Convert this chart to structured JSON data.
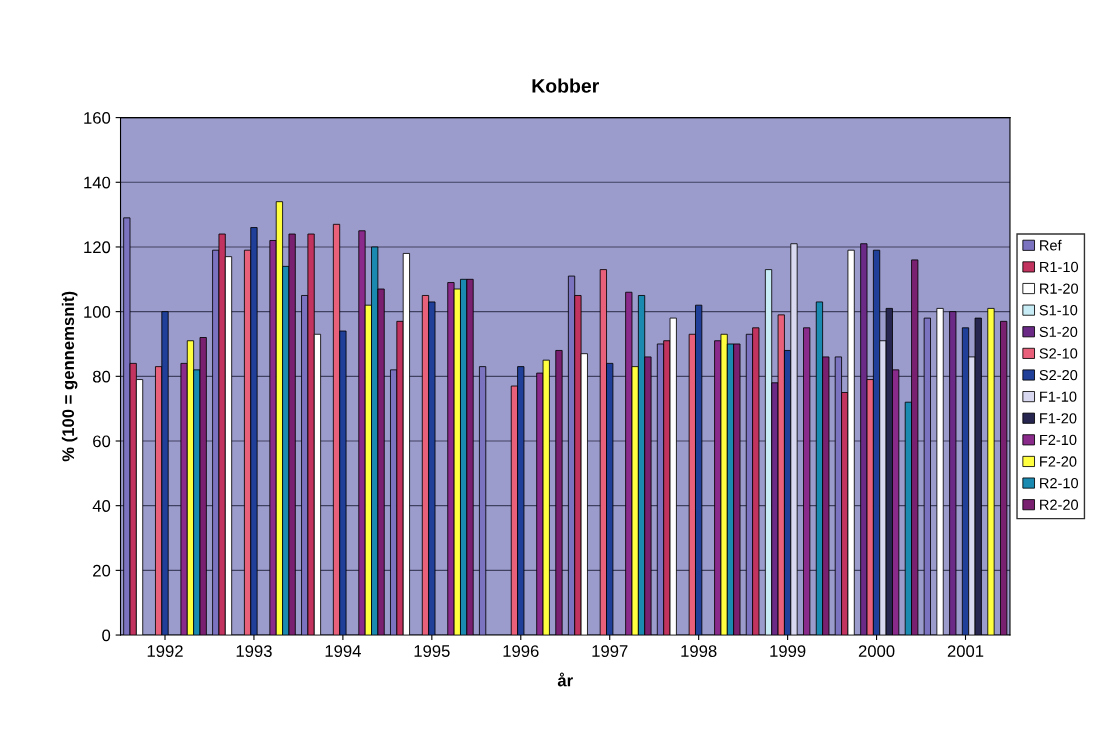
{
  "chart_data": {
    "type": "bar",
    "title": "Kobber",
    "xlabel": "år",
    "ylabel": "% (100 = gennemsnit)",
    "categories": [
      "1992",
      "1993",
      "1994",
      "1995",
      "1996",
      "1997",
      "1998",
      "1999",
      "2000",
      "2001"
    ],
    "ylim": [
      0,
      160
    ],
    "yticks": [
      0,
      20,
      40,
      60,
      80,
      100,
      120,
      140,
      160
    ],
    "grid": "y",
    "legend": "right",
    "series": [
      {
        "name": "Ref",
        "color": "#7b72c0",
        "values": [
          129,
          119,
          105,
          82,
          83,
          111,
          90,
          93,
          86,
          98
        ]
      },
      {
        "name": "R1-10",
        "color": "#c2345f",
        "values": [
          84,
          124,
          124,
          97,
          null,
          105,
          91,
          95,
          75,
          null
        ]
      },
      {
        "name": "R1-20",
        "color": "#ffffff",
        "values": [
          79,
          117,
          93,
          118,
          null,
          87,
          98,
          null,
          119,
          101
        ]
      },
      {
        "name": "S1-10",
        "color": "#c8ecf5",
        "values": [
          null,
          null,
          null,
          null,
          null,
          null,
          null,
          113,
          null,
          null
        ]
      },
      {
        "name": "S1-20",
        "color": "#6a2a86",
        "values": [
          null,
          null,
          null,
          null,
          null,
          null,
          null,
          78,
          121,
          100
        ]
      },
      {
        "name": "S2-10",
        "color": "#e8607a",
        "values": [
          83,
          119,
          127,
          105,
          77,
          113,
          93,
          99,
          79,
          null
        ]
      },
      {
        "name": "S2-20",
        "color": "#1f3f99",
        "values": [
          100,
          126,
          94,
          103,
          83,
          84,
          102,
          88,
          119,
          95
        ]
      },
      {
        "name": "F1-10",
        "color": "#d8d8f0",
        "values": [
          null,
          null,
          null,
          null,
          null,
          null,
          null,
          121,
          91,
          86
        ]
      },
      {
        "name": "F1-20",
        "color": "#262650",
        "values": [
          null,
          null,
          null,
          null,
          null,
          null,
          null,
          null,
          101,
          98
        ]
      },
      {
        "name": "F2-10",
        "color": "#8a2a8a",
        "values": [
          84,
          122,
          125,
          109,
          81,
          106,
          91,
          95,
          82,
          null
        ]
      },
      {
        "name": "F2-20",
        "color": "#ffff40",
        "values": [
          91,
          134,
          102,
          107,
          85,
          83,
          93,
          null,
          null,
          101
        ]
      },
      {
        "name": "R2-10",
        "color": "#1a8ab0",
        "values": [
          82,
          114,
          120,
          110,
          null,
          105,
          90,
          103,
          72,
          null
        ]
      },
      {
        "name": "R2-20",
        "color": "#7a2070",
        "values": [
          92,
          124,
          107,
          110,
          88,
          86,
          90,
          86,
          116,
          97
        ]
      }
    ]
  }
}
